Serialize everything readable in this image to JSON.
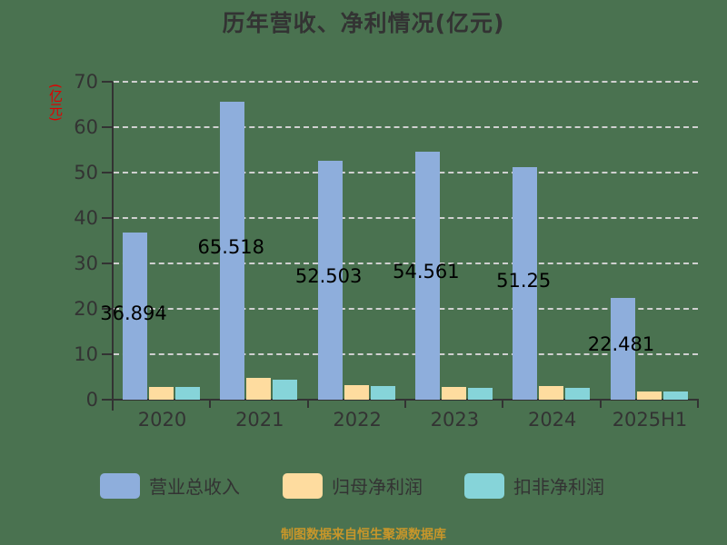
{
  "title": "历年营收、净利情况(亿元)",
  "y_axis_label": "(亿元)",
  "y_ticks": [
    "0",
    "10",
    "20",
    "30",
    "40",
    "50",
    "60",
    "70"
  ],
  "x_ticks": [
    "2020",
    "2021",
    "2022",
    "2023",
    "2024",
    "2025H1"
  ],
  "legend": [
    {
      "label": "营业总收入",
      "color": "#8eaedc"
    },
    {
      "label": "归母净利润",
      "color": "#fedc9f"
    },
    {
      "label": "扣非净利润",
      "color": "#86d4d9"
    }
  ],
  "value_labels": [
    "36.894",
    "65.518",
    "52.503",
    "54.561",
    "51.25",
    "22.481"
  ],
  "footer": "制图数据来自恒生聚源数据库",
  "chart_data": {
    "type": "bar",
    "title": "历年营收、净利情况(亿元)",
    "xlabel": "",
    "ylabel": "(亿元)",
    "ylim": [
      0,
      70
    ],
    "grid": true,
    "legend_position": "bottom",
    "categories": [
      "2020",
      "2021",
      "2022",
      "2023",
      "2024",
      "2025H1"
    ],
    "series": [
      {
        "name": "营业总收入",
        "color": "#8eaedc",
        "values": [
          36.894,
          65.518,
          52.503,
          54.561,
          51.25,
          22.481
        ]
      },
      {
        "name": "归母净利润",
        "color": "#fedc9f",
        "values": [
          2.8,
          4.8,
          3.2,
          2.8,
          3.0,
          1.8
        ]
      },
      {
        "name": "扣非净利润",
        "color": "#86d4d9",
        "values": [
          2.8,
          4.4,
          3.0,
          2.6,
          2.6,
          1.8
        ]
      }
    ]
  }
}
